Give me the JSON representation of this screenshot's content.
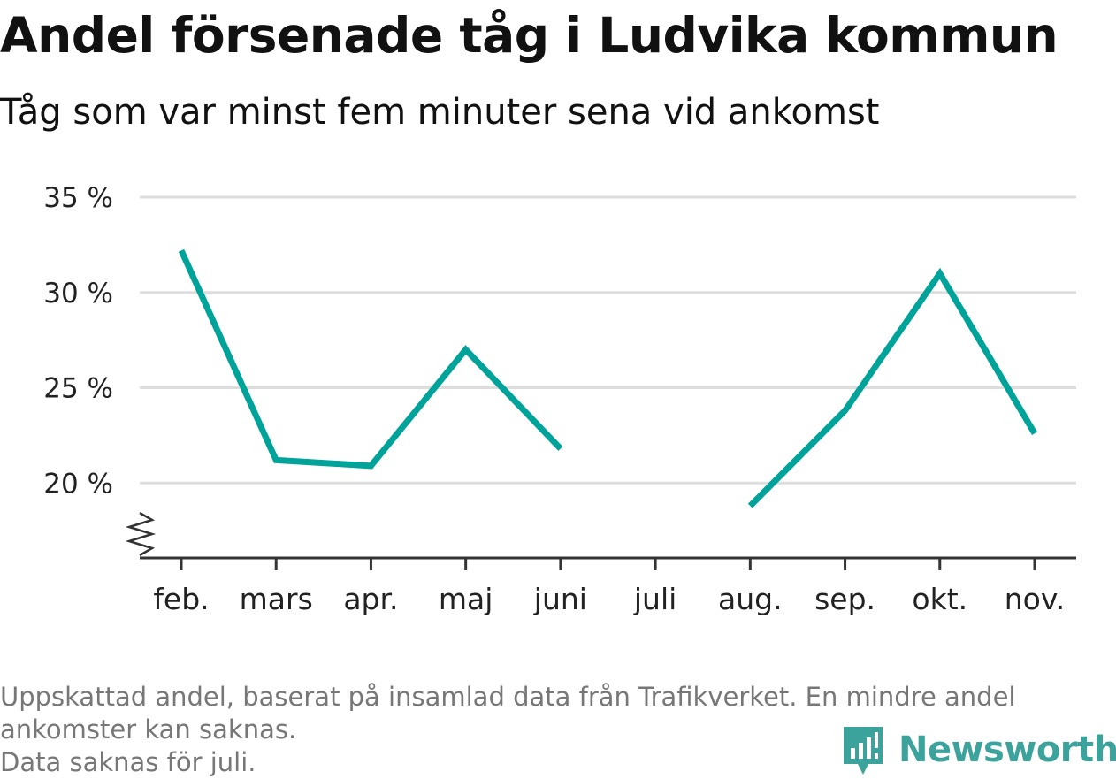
{
  "header": {
    "title": "Andel försenade tåg i Ludvika kommun",
    "subtitle": "Tåg som var minst fem minuter sena vid ankomst"
  },
  "chart_data": {
    "type": "line",
    "title": "Andel försenade tåg i Ludvika kommun",
    "subtitle": "Tåg som var minst fem minuter sena vid ankomst",
    "xlabel": "",
    "ylabel": "",
    "categories": [
      "feb.",
      "mars",
      "apr.",
      "maj",
      "juni",
      "juli",
      "aug.",
      "sep.",
      "okt.",
      "nov."
    ],
    "series": [
      {
        "values": [
          32.2,
          21.2,
          20.9,
          27.0,
          21.8,
          null,
          18.8,
          23.8,
          31.0,
          22.6
        ]
      }
    ],
    "yticks": [
      20,
      25,
      30,
      35
    ],
    "ytick_labels": [
      "20 %",
      "25 %",
      "30 %",
      "35 %"
    ],
    "ylim": [
      16,
      35
    ],
    "y_axis_break": true,
    "grid": true,
    "line_color": "#00a39a",
    "grid_color": "#dddddd",
    "axis_color": "#333333"
  },
  "footer": {
    "note_lines": [
      "Uppskattad andel, baserat på insamlad data från Trafikverket. En mindre andel",
      "ankomster kan saknas.",
      "Data saknas för juli."
    ],
    "brand": "Newsworthy",
    "brand_color": "#3ba39b"
  }
}
